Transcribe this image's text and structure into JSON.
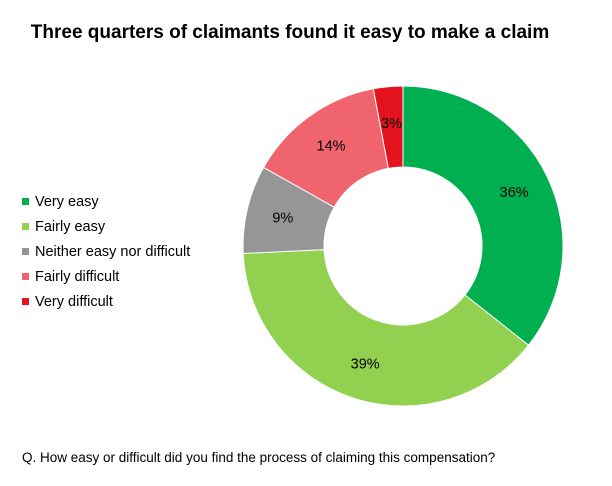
{
  "chart_data": {
    "type": "pie",
    "subtype": "donut",
    "title": "Three quarters of claimants found it easy to make a claim",
    "categories": [
      "Very easy",
      "Fairly easy",
      "Neither easy nor difficult",
      "Fairly difficult",
      "Very difficult"
    ],
    "values": [
      36,
      39,
      9,
      14,
      3
    ],
    "data_labels": [
      "36%",
      "39%",
      "9%",
      "14%",
      "3%"
    ],
    "colors": [
      "#00B050",
      "#92D050",
      "#969696",
      "#F0646E",
      "#E3141E"
    ],
    "legend_position": "left",
    "start_angle": "top, clockwise"
  },
  "footnote": "Q. How easy or difficult did you find the process of claiming this compensation?"
}
